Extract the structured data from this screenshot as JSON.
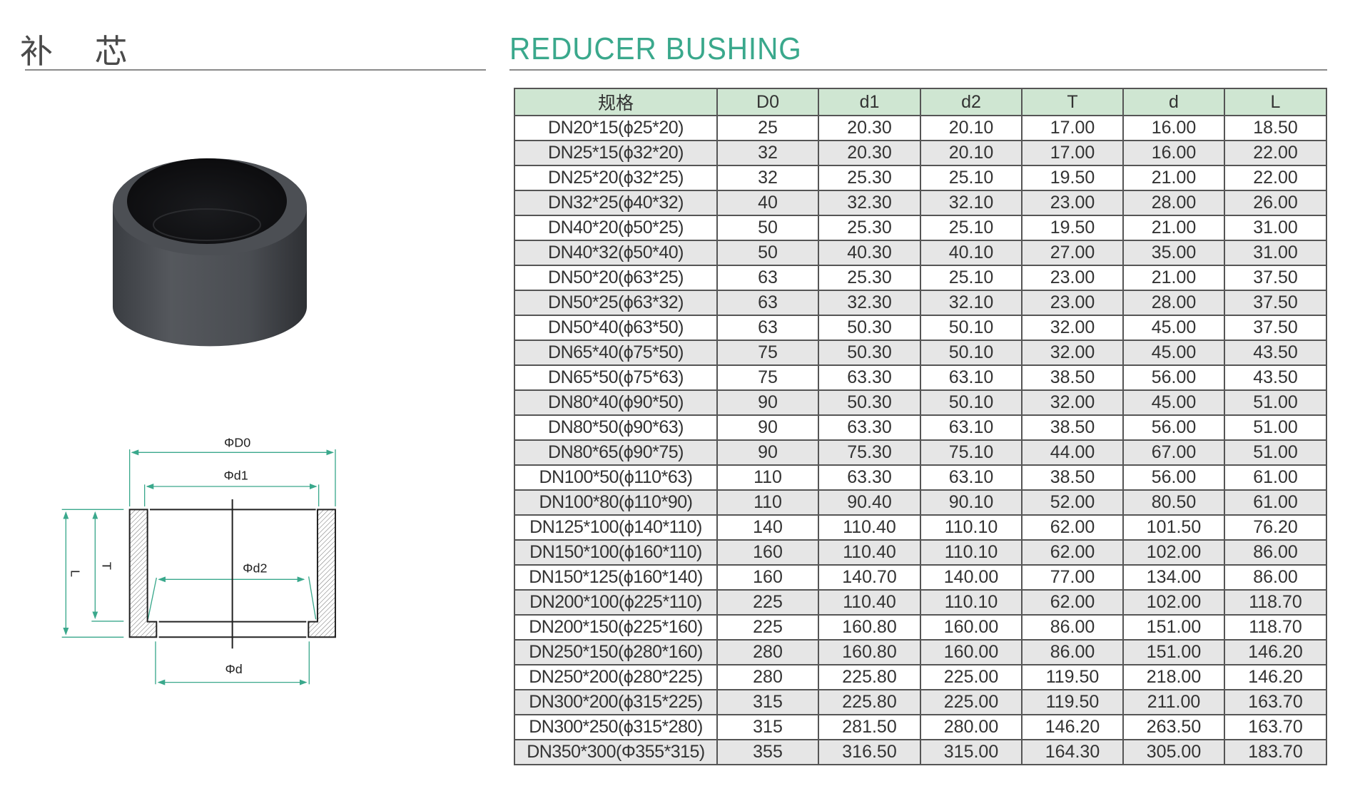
{
  "header": {
    "title_cn": "补 芯",
    "title_en": "REDUCER BUSHING"
  },
  "colors": {
    "accent": "#3aa88c",
    "header_bg": "#cfe6d2",
    "row_alt": "#e6e6e6"
  },
  "diagram": {
    "labels": {
      "D0": "ΦD0",
      "d1": "Φd1",
      "d2": "Φd2",
      "d": "Φd",
      "T": "T",
      "L": "L"
    }
  },
  "table": {
    "columns": [
      "规格",
      "D0",
      "d1",
      "d2",
      "T",
      "d",
      "L"
    ],
    "rows": [
      [
        "DN20*15(ϕ25*20)",
        "25",
        "20.30",
        "20.10",
        "17.00",
        "16.00",
        "18.50"
      ],
      [
        "DN25*15(ϕ32*20)",
        "32",
        "20.30",
        "20.10",
        "17.00",
        "16.00",
        "22.00"
      ],
      [
        "DN25*20(ϕ32*25)",
        "32",
        "25.30",
        "25.10",
        "19.50",
        "21.00",
        "22.00"
      ],
      [
        "DN32*25(ϕ40*32)",
        "40",
        "32.30",
        "32.10",
        "23.00",
        "28.00",
        "26.00"
      ],
      [
        "DN40*20(ϕ50*25)",
        "50",
        "25.30",
        "25.10",
        "19.50",
        "21.00",
        "31.00"
      ],
      [
        "DN40*32(ϕ50*40)",
        "50",
        "40.30",
        "40.10",
        "27.00",
        "35.00",
        "31.00"
      ],
      [
        "DN50*20(ϕ63*25)",
        "63",
        "25.30",
        "25.10",
        "23.00",
        "21.00",
        "37.50"
      ],
      [
        "DN50*25(ϕ63*32)",
        "63",
        "32.30",
        "32.10",
        "23.00",
        "28.00",
        "37.50"
      ],
      [
        "DN50*40(ϕ63*50)",
        "63",
        "50.30",
        "50.10",
        "32.00",
        "45.00",
        "37.50"
      ],
      [
        "DN65*40(ϕ75*50)",
        "75",
        "50.30",
        "50.10",
        "32.00",
        "45.00",
        "43.50"
      ],
      [
        "DN65*50(ϕ75*63)",
        "75",
        "63.30",
        "63.10",
        "38.50",
        "56.00",
        "43.50"
      ],
      [
        "DN80*40(ϕ90*50)",
        "90",
        "50.30",
        "50.10",
        "32.00",
        "45.00",
        "51.00"
      ],
      [
        "DN80*50(ϕ90*63)",
        "90",
        "63.30",
        "63.10",
        "38.50",
        "56.00",
        "51.00"
      ],
      [
        "DN80*65(ϕ90*75)",
        "90",
        "75.30",
        "75.10",
        "44.00",
        "67.00",
        "51.00"
      ],
      [
        "DN100*50(ϕ110*63)",
        "110",
        "63.30",
        "63.10",
        "38.50",
        "56.00",
        "61.00"
      ],
      [
        "DN100*80(ϕ110*90)",
        "110",
        "90.40",
        "90.10",
        "52.00",
        "80.50",
        "61.00"
      ],
      [
        "DN125*100(ϕ140*110)",
        "140",
        "110.40",
        "110.10",
        "62.00",
        "101.50",
        "76.20"
      ],
      [
        "DN150*100(ϕ160*110)",
        "160",
        "110.40",
        "110.10",
        "62.00",
        "102.00",
        "86.00"
      ],
      [
        "DN150*125(ϕ160*140)",
        "160",
        "140.70",
        "140.00",
        "77.00",
        "134.00",
        "86.00"
      ],
      [
        "DN200*100(ϕ225*110)",
        "225",
        "110.40",
        "110.10",
        "62.00",
        "102.00",
        "118.70"
      ],
      [
        "DN200*150(ϕ225*160)",
        "225",
        "160.80",
        "160.00",
        "86.00",
        "151.00",
        "118.70"
      ],
      [
        "DN250*150(ϕ280*160)",
        "280",
        "160.80",
        "160.00",
        "86.00",
        "151.00",
        "146.20"
      ],
      [
        "DN250*200(ϕ280*225)",
        "280",
        "225.80",
        "225.00",
        "119.50",
        "218.00",
        "146.20"
      ],
      [
        "DN300*200(ϕ315*225)",
        "315",
        "225.80",
        "225.00",
        "119.50",
        "211.00",
        "163.70"
      ],
      [
        "DN300*250(ϕ315*280)",
        "315",
        "281.50",
        "280.00",
        "146.20",
        "263.50",
        "163.70"
      ],
      [
        "DN350*300(Φ355*315)",
        "355",
        "316.50",
        "315.00",
        "164.30",
        "305.00",
        "183.70"
      ]
    ]
  }
}
